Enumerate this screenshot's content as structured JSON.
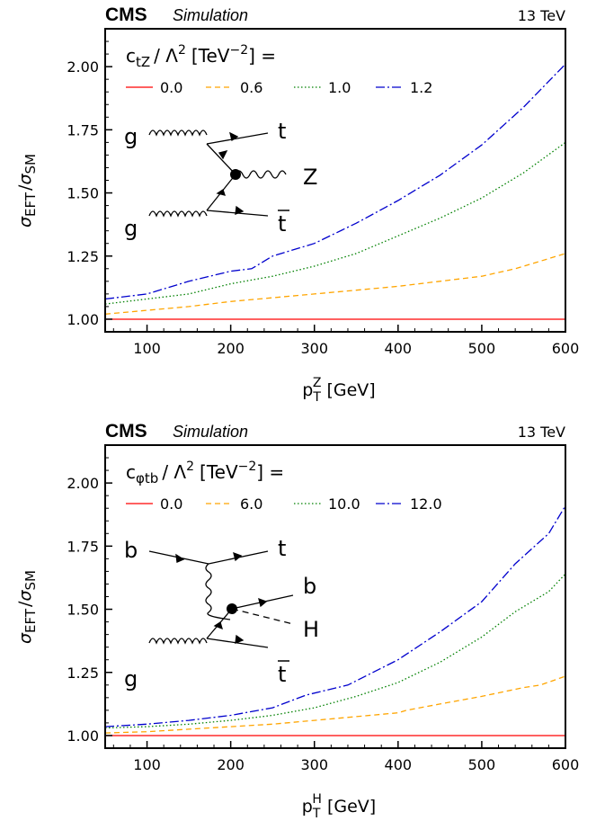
{
  "chart_data": [
    {
      "type": "line",
      "experiment": "CMS",
      "tag": "Simulation",
      "energy": "13 TeV",
      "legend_title": {
        "coupling": "c",
        "coupling_sub": "tZ",
        "rest": "/ Λ",
        "power": "2",
        "units": "[TeV",
        "units_power": "−2",
        "tail": "] ="
      },
      "legend_location": "upper-left",
      "xlabel": {
        "base": "p",
        "sub": "T",
        "sup": "Z",
        "unit": "[GeV]"
      },
      "ylabel": {
        "sigma1": "σ",
        "sub1": "EFT",
        "slash": "/",
        "sigma2": "σ",
        "sub2": "SM"
      },
      "xlim": [
        50,
        600
      ],
      "ylim": [
        0.95,
        2.15
      ],
      "xticks": [
        "100",
        "200",
        "300",
        "400",
        "500",
        "600"
      ],
      "yticks": [
        "1.00",
        "1.25",
        "1.50",
        "1.75",
        "2.00"
      ],
      "series": [
        {
          "name": "0.0",
          "color": "#ff0000",
          "dash": "",
          "points": [
            [
              50,
              1.0
            ],
            [
              600,
              1.0
            ]
          ]
        },
        {
          "name": "0.6",
          "color": "#ffa500",
          "dash": "6,4",
          "points": [
            [
              50,
              1.02
            ],
            [
              100,
              1.035
            ],
            [
              150,
              1.05
            ],
            [
              200,
              1.07
            ],
            [
              250,
              1.085
            ],
            [
              300,
              1.1
            ],
            [
              350,
              1.115
            ],
            [
              400,
              1.13
            ],
            [
              450,
              1.15
            ],
            [
              500,
              1.17
            ],
            [
              540,
              1.2
            ],
            [
              570,
              1.23
            ],
            [
              600,
              1.26
            ]
          ]
        },
        {
          "name": "1.0",
          "color": "#008000",
          "dash": "1.5,2.5",
          "points": [
            [
              50,
              1.06
            ],
            [
              100,
              1.08
            ],
            [
              150,
              1.1
            ],
            [
              200,
              1.14
            ],
            [
              250,
              1.17
            ],
            [
              300,
              1.21
            ],
            [
              350,
              1.26
            ],
            [
              400,
              1.33
            ],
            [
              450,
              1.4
            ],
            [
              500,
              1.48
            ],
            [
              550,
              1.58
            ],
            [
              600,
              1.7
            ]
          ]
        },
        {
          "name": "1.2",
          "color": "#0000cd",
          "dash": "10,3,2,3",
          "points": [
            [
              50,
              1.08
            ],
            [
              100,
              1.1
            ],
            [
              150,
              1.15
            ],
            [
              200,
              1.19
            ],
            [
              225,
              1.2
            ],
            [
              250,
              1.25
            ],
            [
              300,
              1.3
            ],
            [
              350,
              1.38
            ],
            [
              400,
              1.47
            ],
            [
              450,
              1.57
            ],
            [
              500,
              1.69
            ],
            [
              550,
              1.84
            ],
            [
              600,
              2.01
            ]
          ]
        }
      ],
      "diagram": {
        "in1": "g",
        "in2": "g",
        "out1": "t",
        "out2": "Z",
        "out3": "t",
        "out3_bar": "true"
      }
    },
    {
      "type": "line",
      "experiment": "CMS",
      "tag": "Simulation",
      "energy": "13 TeV",
      "legend_title": {
        "coupling": "c",
        "coupling_sub": "φtb",
        "rest": "/ Λ",
        "power": "2",
        "units": "[TeV",
        "units_power": "−2",
        "tail": "] ="
      },
      "legend_location": "upper-left",
      "xlabel": {
        "base": "p",
        "sub": "T",
        "sup": "H",
        "unit": "[GeV]"
      },
      "ylabel": {
        "sigma1": "σ",
        "sub1": "EFT",
        "slash": "/",
        "sigma2": "σ",
        "sub2": "SM"
      },
      "xlim": [
        50,
        600
      ],
      "ylim": [
        0.95,
        2.15
      ],
      "xticks": [
        "100",
        "200",
        "300",
        "400",
        "500",
        "600"
      ],
      "yticks": [
        "1.00",
        "1.25",
        "1.50",
        "1.75",
        "2.00"
      ],
      "series": [
        {
          "name": "0.0",
          "color": "#ff0000",
          "dash": "",
          "points": [
            [
              50,
              1.0
            ],
            [
              600,
              1.0
            ]
          ]
        },
        {
          "name": "6.0",
          "color": "#ffa500",
          "dash": "6,4",
          "points": [
            [
              50,
              1.01
            ],
            [
              100,
              1.015
            ],
            [
              150,
              1.025
            ],
            [
              200,
              1.035
            ],
            [
              250,
              1.045
            ],
            [
              300,
              1.06
            ],
            [
              350,
              1.075
            ],
            [
              400,
              1.09
            ],
            [
              410,
              1.1
            ],
            [
              450,
              1.125
            ],
            [
              500,
              1.155
            ],
            [
              550,
              1.19
            ],
            [
              570,
              1.2
            ],
            [
              600,
              1.235
            ]
          ]
        },
        {
          "name": "10.0",
          "color": "#008000",
          "dash": "1.5,2.5",
          "points": [
            [
              50,
              1.03
            ],
            [
              100,
              1.035
            ],
            [
              150,
              1.045
            ],
            [
              200,
              1.06
            ],
            [
              250,
              1.08
            ],
            [
              300,
              1.11
            ],
            [
              350,
              1.155
            ],
            [
              400,
              1.21
            ],
            [
              450,
              1.29
            ],
            [
              500,
              1.39
            ],
            [
              540,
              1.49
            ],
            [
              580,
              1.57
            ],
            [
              600,
              1.64
            ]
          ]
        },
        {
          "name": "12.0",
          "color": "#0000cd",
          "dash": "10,3,2,3",
          "points": [
            [
              50,
              1.035
            ],
            [
              100,
              1.045
            ],
            [
              150,
              1.06
            ],
            [
              200,
              1.08
            ],
            [
              250,
              1.11
            ],
            [
              290,
              1.16
            ],
            [
              340,
              1.2
            ],
            [
              400,
              1.3
            ],
            [
              450,
              1.41
            ],
            [
              500,
              1.53
            ],
            [
              540,
              1.68
            ],
            [
              580,
              1.8
            ],
            [
              600,
              1.91
            ]
          ]
        }
      ],
      "diagram": {
        "in1": "b",
        "in2": "g",
        "out1": "t",
        "out2": "b",
        "out3": "H",
        "out4": "t",
        "out4_bar": "true"
      }
    }
  ]
}
